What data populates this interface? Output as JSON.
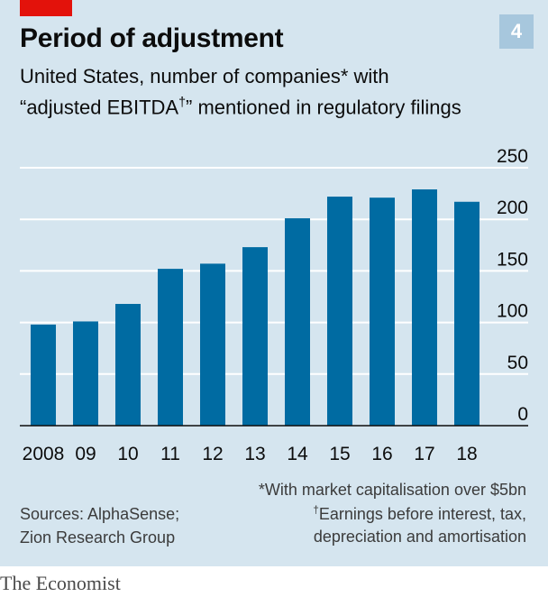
{
  "header": {
    "title": "Period of adjustment",
    "chart_number": "4",
    "subtitle_line1": "United States, number of companies* with",
    "subtitle_line2_pre": "“adjusted EBITDA",
    "subtitle_line2_mark": "†",
    "subtitle_line2_post": "” mentioned in regulatory filings"
  },
  "footer": {
    "sources_line1": "Sources: AlphaSense;",
    "sources_line2": "Zion Research Group",
    "note1": "*With market capitalisation over $5bn",
    "note2_mark": "†",
    "note2": "Earnings before interest, tax,",
    "note3": "depreciation and amortisation",
    "brand": "The Economist"
  },
  "colors": {
    "background": "#d5e5ef",
    "bar": "#006ba2",
    "grid": "#ffffff",
    "axis": "#0c0c0c",
    "accent": "#e3120b"
  },
  "chart_data": {
    "type": "bar",
    "categories": [
      "2008",
      "09",
      "10",
      "11",
      "12",
      "13",
      "14",
      "15",
      "16",
      "17",
      "18"
    ],
    "values": [
      98,
      101,
      118,
      152,
      157,
      173,
      201,
      222,
      221,
      229,
      217
    ],
    "yticks": [
      0,
      50,
      100,
      150,
      200,
      250
    ],
    "ylim": [
      0,
      250
    ],
    "y_axis_side": "right",
    "grid": true
  }
}
